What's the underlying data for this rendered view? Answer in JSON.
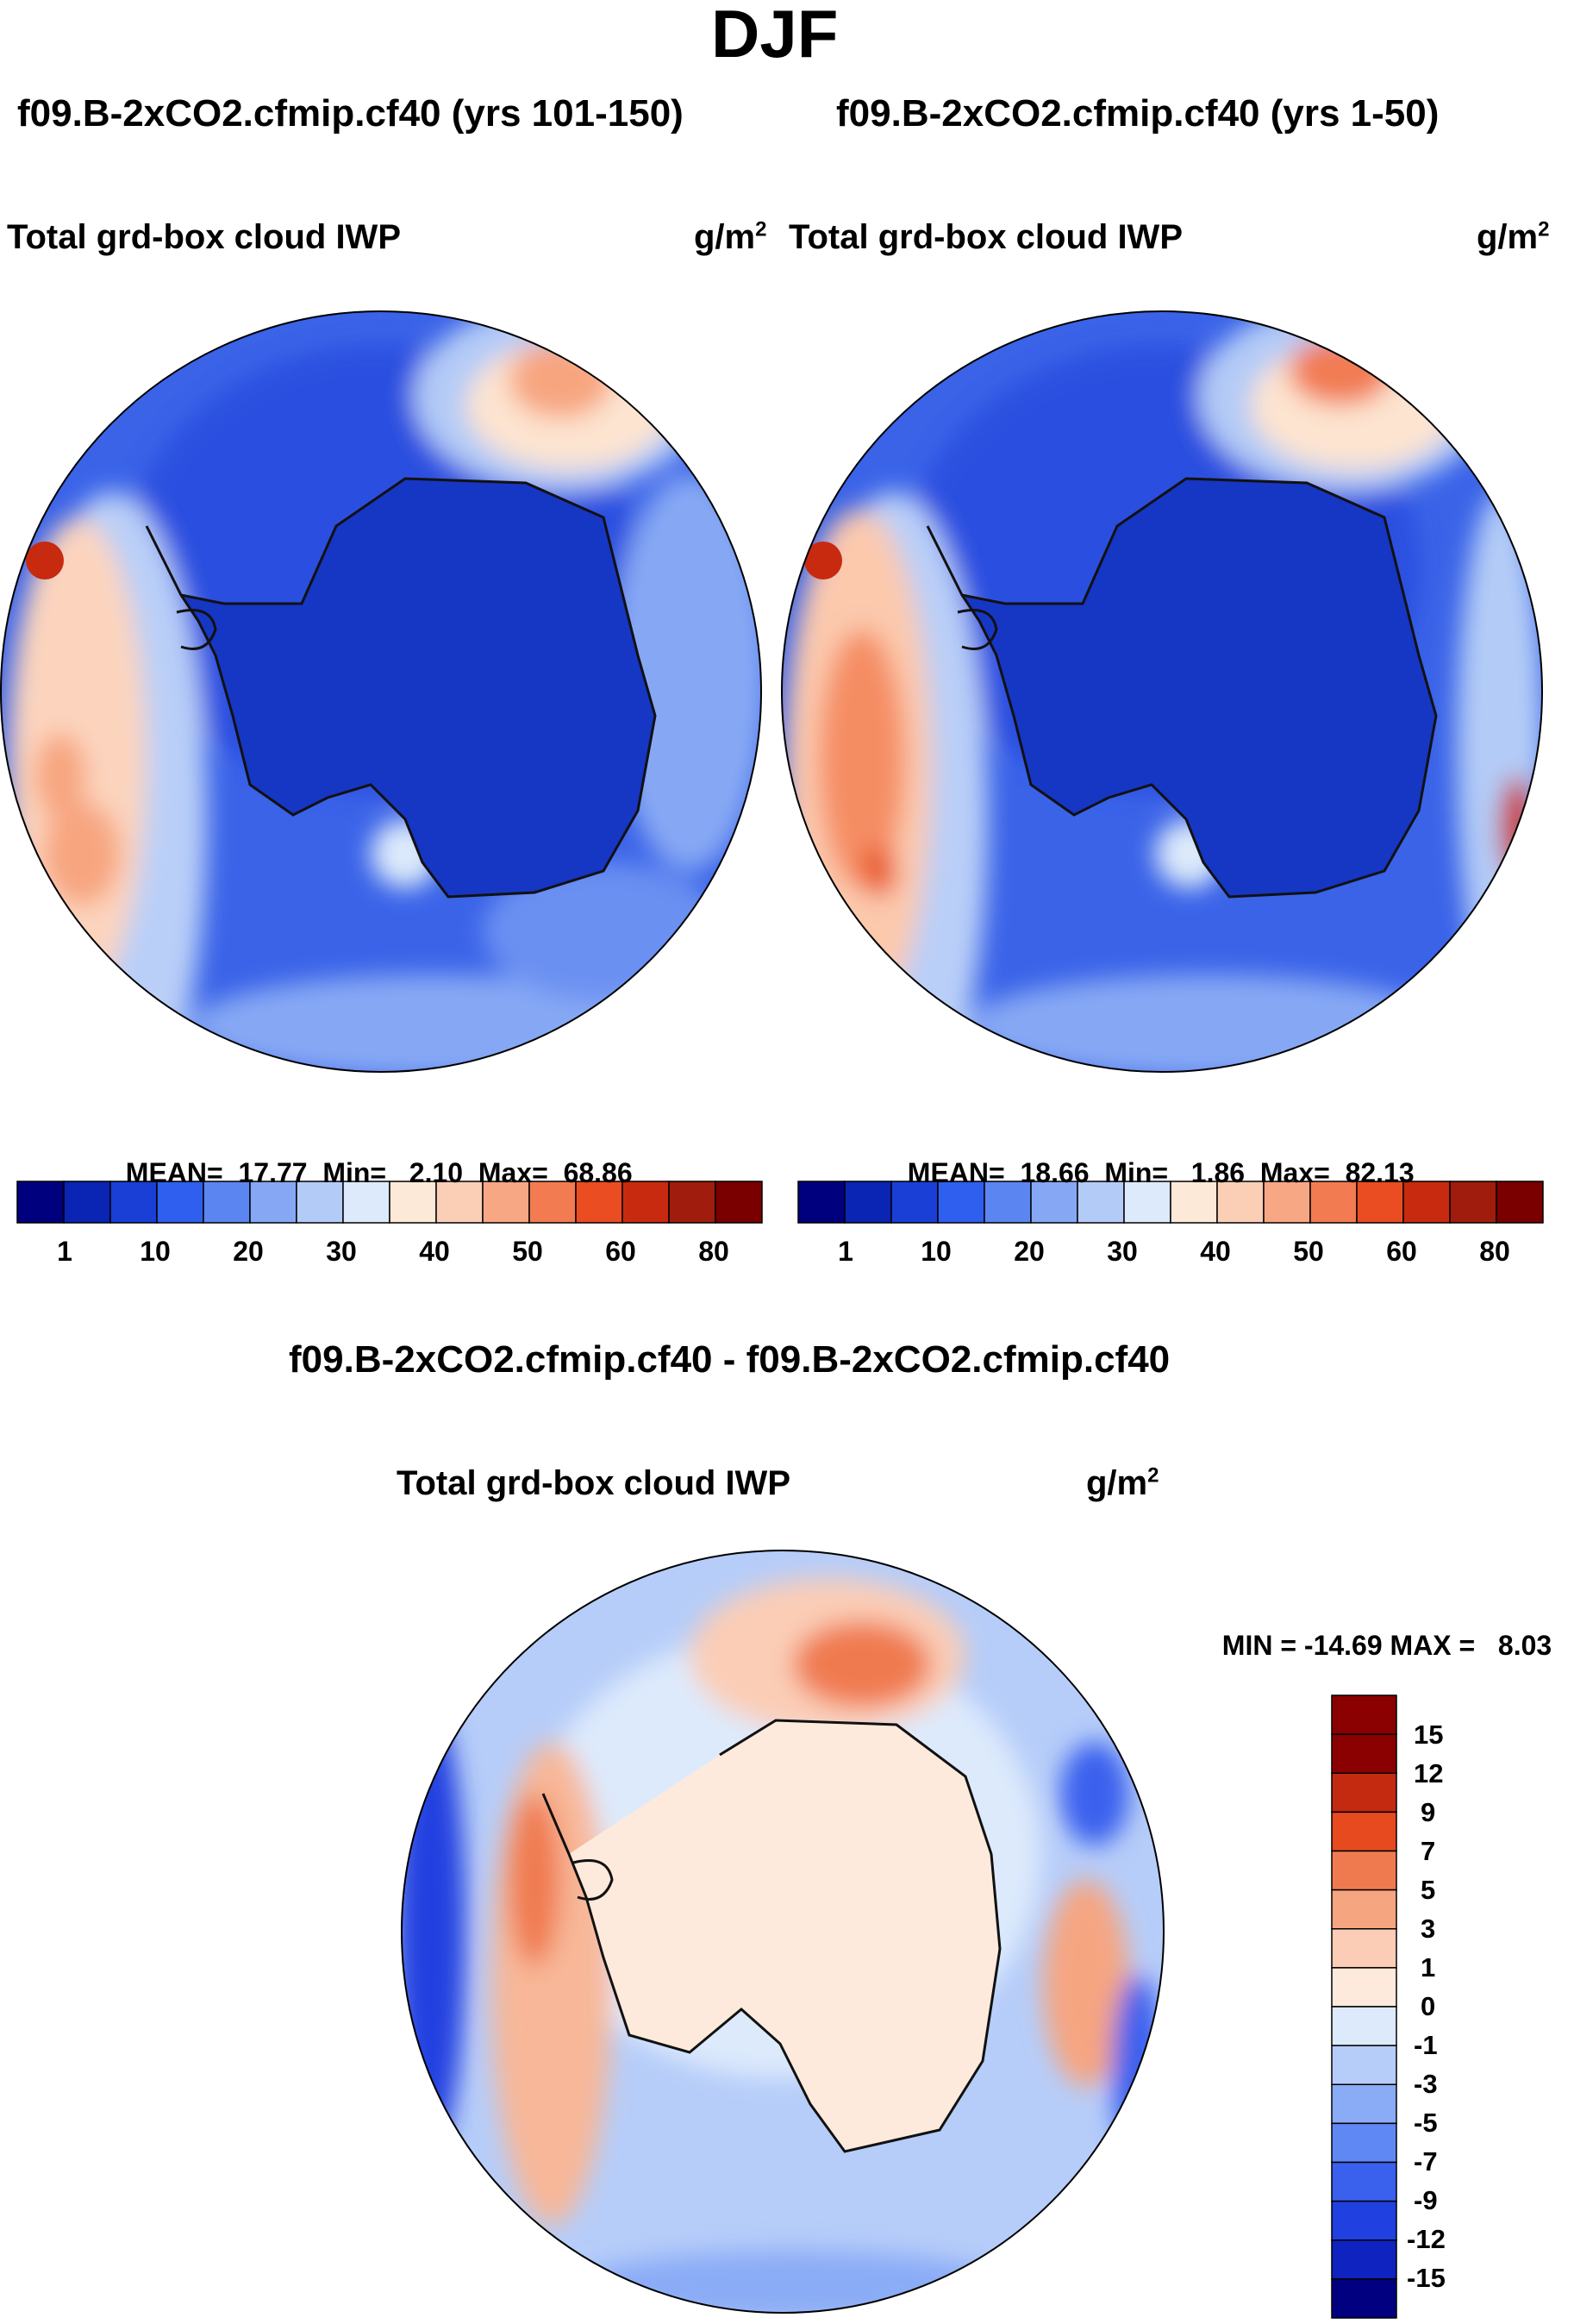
{
  "title": "DJF",
  "panels": [
    {
      "case": "f09.B-2xCO2.cfmip.cf40 (yrs 101-150)",
      "variable": "Total grd-box cloud IWP",
      "units_base": "g/m",
      "units_exp": "2",
      "stats": {
        "mean_label": "MEAN=",
        "mean": "17.77",
        "min_label": "Min=",
        "min": "2.10",
        "max_label": "Max=",
        "max": "68.86"
      }
    },
    {
      "case": "f09.B-2xCO2.cfmip.cf40 (yrs 1-50)",
      "variable": "Total grd-box cloud IWP",
      "units_base": "g/m",
      "units_exp": "2",
      "stats": {
        "mean_label": "MEAN=",
        "mean": "18.66",
        "min_label": "Min=",
        "min": "1.86",
        "max_label": "Max=",
        "max": "82.13"
      }
    }
  ],
  "difference": {
    "case": "f09.B-2xCO2.cfmip.cf40 - f09.B-2xCO2.cfmip.cf40",
    "variable": "Total grd-box cloud IWP",
    "units_base": "g/m",
    "units_exp": "2",
    "stats": {
      "min_label": "MIN =",
      "min": "-14.69",
      "max_label": "MAX =",
      "max": "8.03"
    }
  },
  "colors": {
    "abs_scale": [
      "#00007e",
      "#0a24b4",
      "#1a3fd6",
      "#2f5fee",
      "#5b86f2",
      "#86a8f4",
      "#b3ccf7",
      "#dceafb",
      "#fde9d7",
      "#fbcfb6",
      "#f7a783",
      "#f27b52",
      "#ea4d22",
      "#c82a10",
      "#a01c0c",
      "#7a0000"
    ],
    "diff_scale": [
      "#000080",
      "#0e23c0",
      "#2040e0",
      "#3a60ee",
      "#6088f4",
      "#8aabf6",
      "#b6cdf9",
      "#ddeafc",
      "#fdeadc",
      "#fbcdb6",
      "#f6a581",
      "#f07a50",
      "#e84a20",
      "#c42a10",
      "#8b0000"
    ]
  },
  "chart_data": [
    {
      "type": "heatmap",
      "title": "Total grd-box cloud IWP",
      "case": "f09.B-2xCO2.cfmip.cf40 (yrs 101-150)",
      "units": "g/m2",
      "projection": "south polar stereographic",
      "colorbar_ticks": [
        "1",
        "10",
        "20",
        "30",
        "40",
        "50",
        "60",
        "80"
      ],
      "mean": 17.77,
      "min": 2.1,
      "max": 68.86
    },
    {
      "type": "heatmap",
      "title": "Total grd-box cloud IWP",
      "case": "f09.B-2xCO2.cfmip.cf40 (yrs 1-50)",
      "units": "g/m2",
      "projection": "south polar stereographic",
      "colorbar_ticks": [
        "1",
        "10",
        "20",
        "30",
        "40",
        "50",
        "60",
        "80"
      ],
      "mean": 18.66,
      "min": 1.86,
      "max": 82.13
    },
    {
      "type": "heatmap",
      "title": "Total grd-box cloud IWP",
      "case": "f09.B-2xCO2.cfmip.cf40 - f09.B-2xCO2.cfmip.cf40",
      "units": "g/m2",
      "projection": "south polar stereographic",
      "colorbar_ticks": [
        "15",
        "12",
        "9",
        "7",
        "5",
        "3",
        "1",
        "0",
        "-1",
        "-3",
        "-5",
        "-7",
        "-9",
        "-12",
        "-15"
      ],
      "min": -14.69,
      "max": 8.03
    }
  ]
}
